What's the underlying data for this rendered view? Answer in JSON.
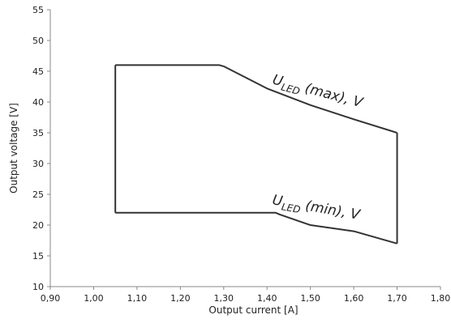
{
  "chart_data": {
    "type": "line",
    "xlabel": "Output current [A]",
    "ylabel": "Output voltage [V]",
    "xlim": [
      0.9,
      1.8
    ],
    "ylim": [
      10,
      55
    ],
    "x_ticks": [
      "0,90",
      "1,00",
      "1,10",
      "1,20",
      "1,30",
      "1,40",
      "1,50",
      "1,60",
      "1,70",
      "1,80"
    ],
    "y_ticks": [
      "10",
      "15",
      "20",
      "25",
      "30",
      "35",
      "40",
      "45",
      "50",
      "55"
    ],
    "grid": false,
    "color": "#333333",
    "labels": {
      "max": {
        "main": "U",
        "sub": "LED",
        "rest": " (max), V"
      },
      "min": {
        "main": "U",
        "sub": "LED",
        "rest": " (min), V"
      }
    },
    "operating_window": {
      "upper": [
        [
          1.05,
          46
        ],
        [
          1.29,
          46
        ],
        [
          1.3,
          45.8
        ],
        [
          1.4,
          42.2
        ],
        [
          1.5,
          39.5
        ],
        [
          1.6,
          37.2
        ],
        [
          1.7,
          35
        ]
      ],
      "lower": [
        [
          1.05,
          22
        ],
        [
          1.42,
          22
        ],
        [
          1.43,
          21.7
        ],
        [
          1.5,
          20
        ],
        [
          1.6,
          19
        ],
        [
          1.7,
          17
        ]
      ]
    }
  }
}
